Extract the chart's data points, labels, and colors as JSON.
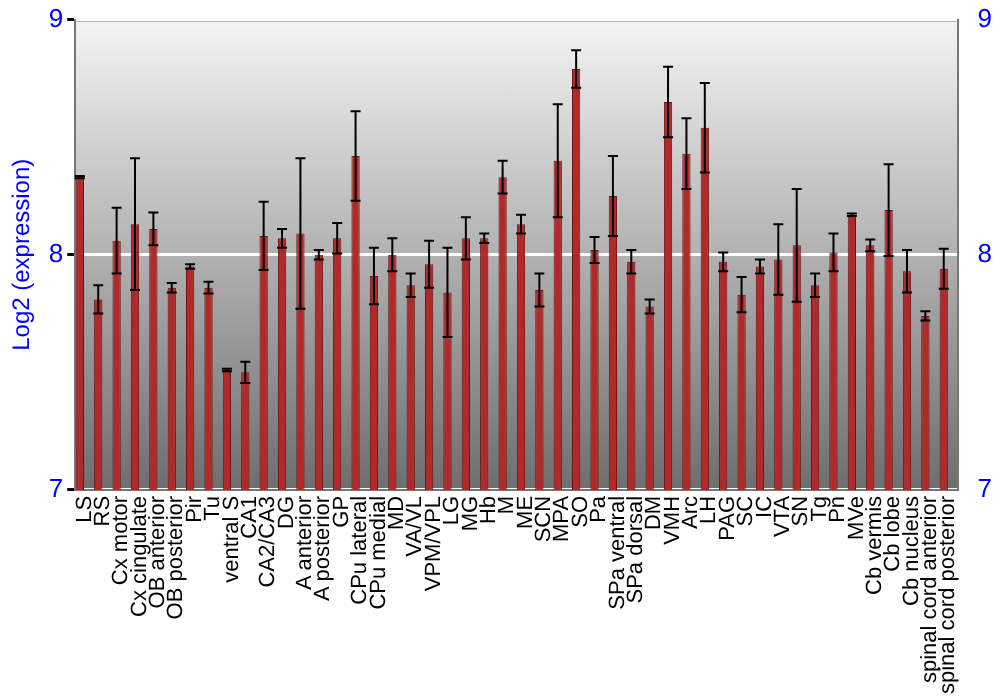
{
  "chart_data": {
    "type": "bar",
    "ylabel": "Log2 (expression)",
    "categories": [
      "LS",
      "RS",
      "Cx motor",
      "Cx cingulate",
      "OB anterior",
      "OB posterior",
      "Pir",
      "Tu",
      "ventral S",
      "CA1",
      "CA2/CA3",
      "DG",
      "A anterior",
      "A posterior",
      "GP",
      "CPu lateral",
      "CPu medial",
      "MD",
      "VA/VL",
      "VPM/VPL",
      "LG",
      "MG",
      "Hb",
      "M",
      "ME",
      "SCN",
      "MPA",
      "SO",
      "Pa",
      "SPa ventral",
      "SPa dorsal",
      "DM",
      "VMH",
      "Arc",
      "LH",
      "PAG",
      "SC",
      "IC",
      "VTA",
      "SN",
      "Tg",
      "Pn",
      "MVe",
      "Cb vermis",
      "Cb lobe",
      "Cb nucleus",
      "spinal cord anterior",
      "spinal cord posterior"
    ],
    "values": [
      8.33,
      7.81,
      8.06,
      8.13,
      8.11,
      7.86,
      7.95,
      7.86,
      7.51,
      7.5,
      8.08,
      8.07,
      8.09,
      8.0,
      8.07,
      8.42,
      7.91,
      8.0,
      7.87,
      7.96,
      7.84,
      8.07,
      8.07,
      8.33,
      8.13,
      7.85,
      8.4,
      8.79,
      8.02,
      8.25,
      7.97,
      7.78,
      8.65,
      8.43,
      8.54,
      7.97,
      7.83,
      7.95,
      7.98,
      8.04,
      7.87,
      8.01,
      8.17,
      8.04,
      8.19,
      7.93,
      7.74,
      7.94
    ],
    "errors": [
      0.005,
      0.06,
      0.14,
      0.28,
      0.07,
      0.02,
      0.01,
      0.025,
      0.005,
      0.045,
      0.145,
      0.04,
      0.32,
      0.02,
      0.065,
      0.19,
      0.12,
      0.07,
      0.05,
      0.1,
      0.19,
      0.09,
      0.02,
      0.07,
      0.04,
      0.07,
      0.24,
      0.08,
      0.055,
      0.17,
      0.05,
      0.03,
      0.15,
      0.15,
      0.19,
      0.04,
      0.075,
      0.03,
      0.15,
      0.24,
      0.05,
      0.08,
      0.005,
      0.025,
      0.195,
      0.09,
      0.02,
      0.085
    ],
    "color": "#b02a2a",
    "ylim": [
      7,
      9
    ],
    "yticks": [
      7,
      8,
      9
    ],
    "y2lim": [
      7,
      9
    ],
    "y2ticks": [
      7,
      8,
      9
    ],
    "grid": "y",
    "legend": false
  }
}
